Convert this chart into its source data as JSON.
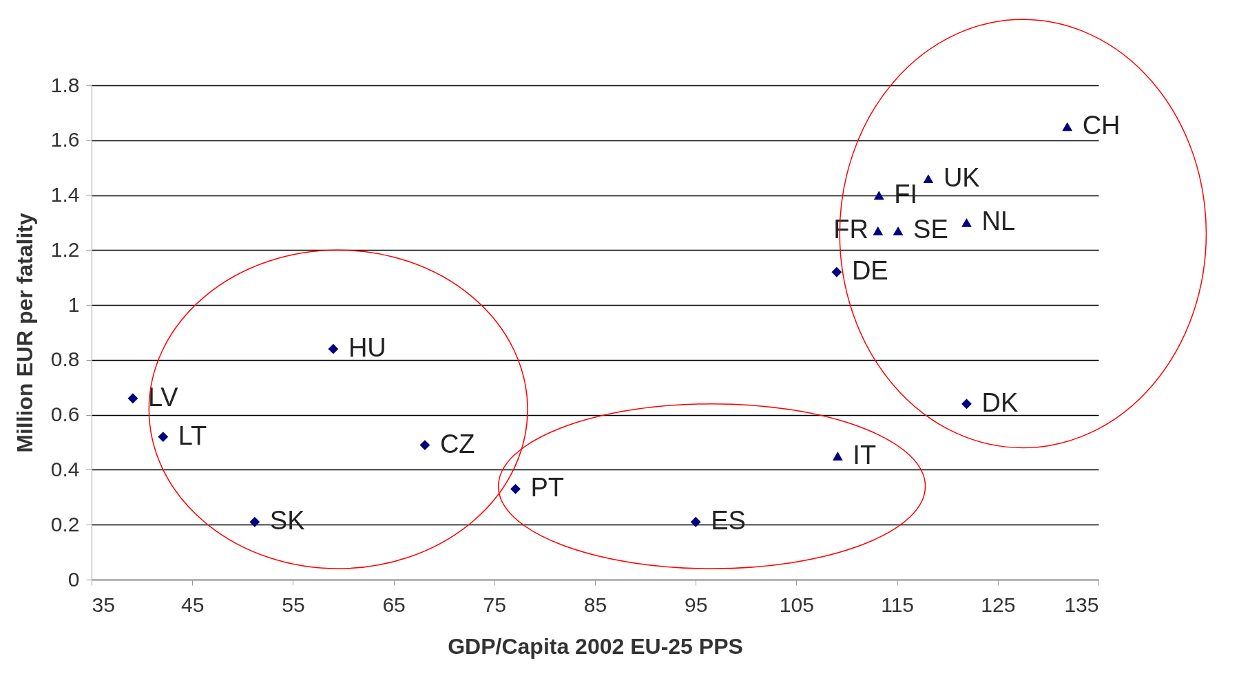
{
  "chart_data": {
    "type": "scatter",
    "xlabel": "GDP/Capita 2002 EU-25 PPS",
    "ylabel": "Million EUR per fatality",
    "xlim": [
      35,
      135
    ],
    "xticks": [
      35,
      45,
      55,
      65,
      75,
      85,
      95,
      105,
      115,
      125,
      135
    ],
    "ylim": [
      0,
      1.8
    ],
    "yticks": [
      0,
      0.2,
      0.4,
      0.6,
      0.8,
      1,
      1.2,
      1.4,
      1.6,
      1.8
    ],
    "grid": "y",
    "series": [
      {
        "color": "#000080",
        "marker": "diamond",
        "x": [
          39.1,
          42.1,
          51.2,
          59.0,
          68.1,
          77.1,
          95.0,
          109.0,
          121.9
        ],
        "values": [
          0.66,
          0.52,
          0.21,
          0.84,
          0.49,
          0.33,
          0.21,
          1.12,
          0.64
        ]
      },
      {
        "color": "#000080",
        "marker": "triangle",
        "x": [
          131.9,
          118.1,
          113.2,
          113.1,
          115.1,
          121.9,
          109.1
        ],
        "values": [
          1.65,
          1.46,
          1.4,
          1.27,
          1.27,
          1.3,
          0.45
        ]
      }
    ],
    "annotations": [
      {
        "text": "LV",
        "x": 39.1,
        "y": 0.66
      },
      {
        "text": "LT",
        "x": 42.1,
        "y": 0.52
      },
      {
        "text": "SK",
        "x": 51.2,
        "y": 0.21
      },
      {
        "text": "HU",
        "x": 59.0,
        "y": 0.84
      },
      {
        "text": "CZ",
        "x": 68.1,
        "y": 0.49
      },
      {
        "text": "PT",
        "x": 77.1,
        "y": 0.33
      },
      {
        "text": "ES",
        "x": 95.0,
        "y": 0.21
      },
      {
        "text": "DE",
        "x": 109.0,
        "y": 1.12
      },
      {
        "text": "DK",
        "x": 121.9,
        "y": 0.64
      },
      {
        "text": "CH",
        "x": 131.9,
        "y": 1.65
      },
      {
        "text": "UK",
        "x": 118.1,
        "y": 1.46
      },
      {
        "text": "FI",
        "x": 113.2,
        "y": 1.4
      },
      {
        "text": "FR",
        "x": 113.1,
        "y": 1.27
      },
      {
        "text": "SE",
        "x": 115.1,
        "y": 1.27
      },
      {
        "text": "NL",
        "x": 121.9,
        "y": 1.3
      },
      {
        "text": "IT",
        "x": 109.1,
        "y": 0.45
      }
    ]
  }
}
